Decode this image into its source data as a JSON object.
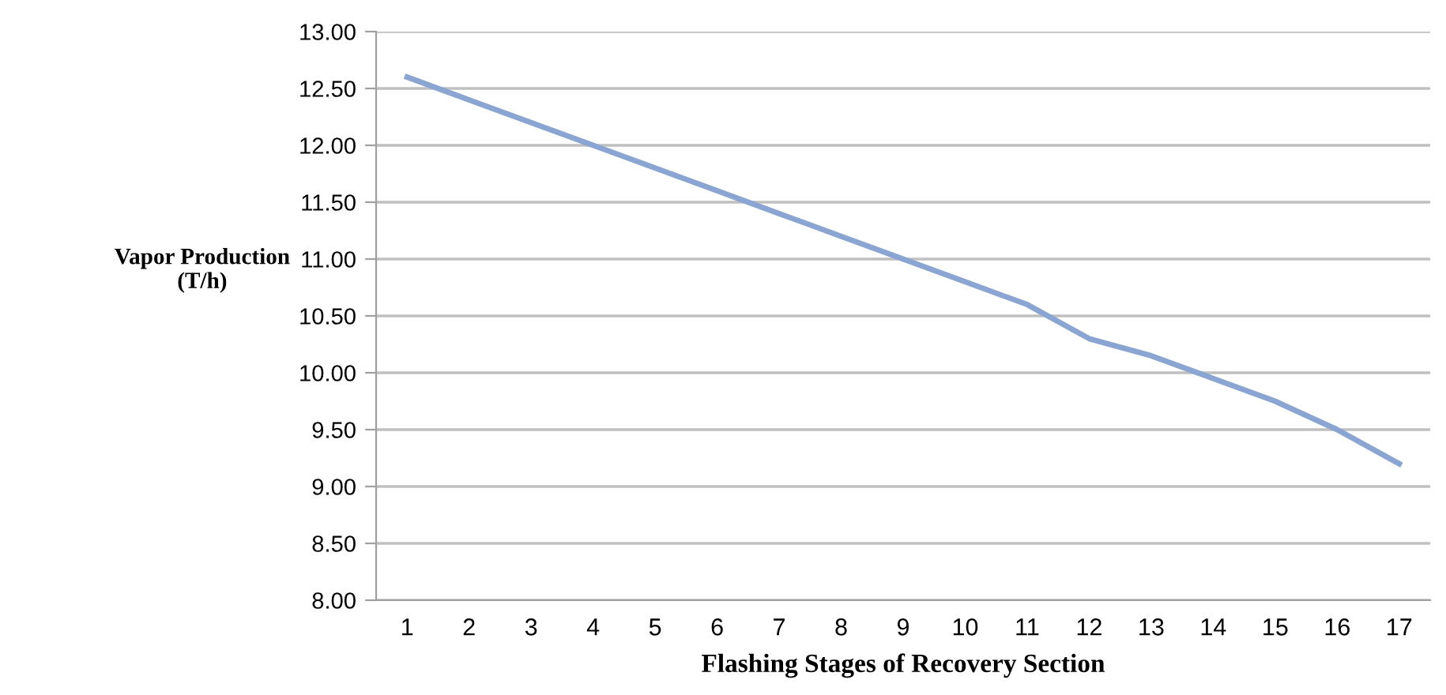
{
  "chart_data": {
    "type": "line",
    "xlabel": "Flashing Stages of Recovery Section",
    "ylabel": "Vapor Production\n(T/h)",
    "categories": [
      "1",
      "2",
      "3",
      "4",
      "5",
      "6",
      "7",
      "8",
      "9",
      "10",
      "11",
      "12",
      "13",
      "14",
      "15",
      "16",
      "17"
    ],
    "series": [
      {
        "color": "#8aa5d2",
        "values": [
          12.6,
          12.4,
          12.2,
          12.0,
          11.8,
          11.6,
          11.4,
          11.2,
          11.0,
          10.8,
          10.6,
          10.3,
          10.15,
          9.95,
          9.75,
          9.5,
          9.2
        ]
      }
    ],
    "ylim": [
      8,
      13
    ],
    "yticks": [
      {
        "value": 8,
        "label": "8.00"
      },
      {
        "value": 8.5,
        "label": "8.50"
      },
      {
        "value": 9,
        "label": "9.00"
      },
      {
        "value": 9.5,
        "label": "9.50"
      },
      {
        "value": 10,
        "label": "10.00"
      },
      {
        "value": 10.5,
        "label": "10.50"
      },
      {
        "value": 11,
        "label": "11.00"
      },
      {
        "value": 11.5,
        "label": "11.50"
      },
      {
        "value": 12,
        "label": "12.00"
      },
      {
        "value": 12.5,
        "label": "12.50"
      },
      {
        "value": 13,
        "label": "13.00"
      }
    ],
    "grid": "y",
    "marker": "none",
    "line_style": "solid"
  }
}
